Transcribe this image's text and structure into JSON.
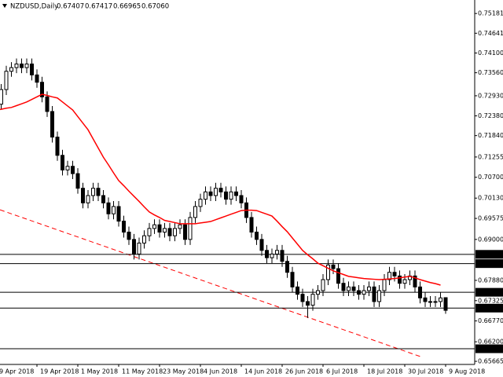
{
  "chart_data": {
    "type": "candlestick",
    "title": "NZDUSD,Daily",
    "last_bar_labels": [
      "0.67407",
      "0.67417",
      "0.66965",
      "0.67060"
    ],
    "categories": [
      "9 Apr 2018",
      null,
      null,
      null,
      null,
      null,
      null,
      null,
      "19 Apr 2018",
      null,
      null,
      null,
      null,
      null,
      null,
      null,
      "1 May 2018",
      null,
      null,
      null,
      null,
      null,
      null,
      null,
      "11 May 2018",
      null,
      null,
      null,
      null,
      null,
      null,
      null,
      "23 May 2018",
      null,
      null,
      null,
      null,
      null,
      null,
      null,
      "4 Jun 2018",
      null,
      null,
      null,
      null,
      null,
      null,
      null,
      "14 Jun 2018",
      null,
      null,
      null,
      null,
      null,
      null,
      null,
      "26 Jun 2018",
      null,
      null,
      null,
      null,
      null,
      null,
      null,
      "6 Jul 2018",
      null,
      null,
      null,
      null,
      null,
      null,
      null,
      "18 Jul 2018",
      null,
      null,
      null,
      null,
      null,
      null,
      null,
      "30 Jul 2018",
      null,
      null,
      null,
      null,
      null,
      null,
      null,
      "9 Aug 2018"
    ],
    "open": [
      0.724,
      0.727,
      0.731,
      0.736,
      0.737,
      0.738,
      0.737,
      0.738,
      0.735,
      0.733,
      0.729,
      0.725,
      0.718,
      0.713,
      0.709,
      0.71,
      0.708,
      0.704,
      0.7,
      0.702,
      0.704,
      0.702,
      0.7,
      0.697,
      0.699,
      0.695,
      0.692,
      0.69,
      0.686,
      0.689,
      0.691,
      0.693,
      0.694,
      0.692,
      0.693,
      0.691,
      0.693,
      0.694,
      0.69,
      0.696,
      0.699,
      0.701,
      0.703,
      0.702,
      0.704,
      0.703,
      0.701,
      0.703,
      0.702,
      0.7,
      0.696,
      0.692,
      0.69,
      0.687,
      0.685,
      0.686,
      0.687,
      0.684,
      0.681,
      0.677,
      0.675,
      0.673,
      0.672,
      0.675,
      0.676,
      0.679,
      0.683,
      0.682,
      0.678,
      0.676,
      0.677,
      0.676,
      0.675,
      0.676,
      0.677,
      0.673,
      0.676,
      0.679,
      0.681,
      0.68,
      0.678,
      0.679,
      0.68,
      0.677,
      0.674,
      0.673,
      0.673,
      0.673,
      0.67407
    ],
    "high": [
      0.7285,
      0.7325,
      0.7375,
      0.7385,
      0.7395,
      0.7395,
      0.7395,
      0.7395,
      0.7365,
      0.7345,
      0.7305,
      0.7265,
      0.7195,
      0.7145,
      0.7115,
      0.7115,
      0.7095,
      0.7055,
      0.7035,
      0.7055,
      0.7055,
      0.7035,
      0.7015,
      0.7005,
      0.7005,
      0.6965,
      0.6935,
      0.6915,
      0.6905,
      0.6925,
      0.6945,
      0.6955,
      0.6955,
      0.6945,
      0.6945,
      0.6945,
      0.6955,
      0.6955,
      0.6975,
      0.7005,
      0.7025,
      0.7045,
      0.7045,
      0.7055,
      0.7055,
      0.7045,
      0.7045,
      0.7045,
      0.7035,
      0.7015,
      0.6975,
      0.6935,
      0.6915,
      0.6885,
      0.6875,
      0.6885,
      0.6885,
      0.6855,
      0.6825,
      0.6785,
      0.6765,
      0.6745,
      0.6765,
      0.6775,
      0.6805,
      0.6845,
      0.6845,
      0.6835,
      0.6795,
      0.6785,
      0.6785,
      0.6775,
      0.6775,
      0.6785,
      0.6785,
      0.6775,
      0.6805,
      0.6825,
      0.6825,
      0.6815,
      0.6805,
      0.6815,
      0.6815,
      0.6785,
      0.6755,
      0.6745,
      0.6745,
      0.6755,
      0.67417
    ],
    "low": [
      0.7225,
      0.7255,
      0.7295,
      0.7345,
      0.7355,
      0.7355,
      0.7355,
      0.7335,
      0.7315,
      0.7275,
      0.7235,
      0.7165,
      0.7115,
      0.7075,
      0.7075,
      0.7065,
      0.7025,
      0.6985,
      0.6985,
      0.7005,
      0.7005,
      0.6985,
      0.6955,
      0.6955,
      0.6935,
      0.6905,
      0.6885,
      0.6845,
      0.6845,
      0.6875,
      0.6895,
      0.6915,
      0.6905,
      0.6905,
      0.6895,
      0.6895,
      0.6915,
      0.6885,
      0.6885,
      0.6945,
      0.6975,
      0.6995,
      0.7005,
      0.7005,
      0.7015,
      0.6995,
      0.6995,
      0.7005,
      0.6985,
      0.6945,
      0.6905,
      0.6885,
      0.6855,
      0.6835,
      0.6835,
      0.6845,
      0.6825,
      0.6795,
      0.6755,
      0.6735,
      0.6715,
      0.6685,
      0.6705,
      0.6735,
      0.6745,
      0.6775,
      0.6805,
      0.6765,
      0.6745,
      0.6745,
      0.6745,
      0.6735,
      0.6735,
      0.6745,
      0.6715,
      0.6715,
      0.6745,
      0.6775,
      0.6785,
      0.6765,
      0.6765,
      0.6775,
      0.6755,
      0.6725,
      0.6715,
      0.6715,
      0.6715,
      0.6715,
      0.66965
    ],
    "close": [
      0.727,
      0.731,
      0.736,
      0.737,
      0.738,
      0.737,
      0.738,
      0.735,
      0.733,
      0.729,
      0.725,
      0.718,
      0.713,
      0.709,
      0.71,
      0.708,
      0.704,
      0.7,
      0.702,
      0.704,
      0.702,
      0.7,
      0.697,
      0.699,
      0.695,
      0.692,
      0.69,
      0.686,
      0.689,
      0.691,
      0.693,
      0.694,
      0.692,
      0.693,
      0.691,
      0.693,
      0.694,
      0.69,
      0.696,
      0.699,
      0.701,
      0.703,
      0.702,
      0.704,
      0.703,
      0.701,
      0.703,
      0.702,
      0.7,
      0.696,
      0.692,
      0.69,
      0.687,
      0.685,
      0.686,
      0.687,
      0.684,
      0.681,
      0.677,
      0.675,
      0.673,
      0.672,
      0.675,
      0.676,
      0.679,
      0.683,
      0.682,
      0.678,
      0.676,
      0.677,
      0.676,
      0.675,
      0.676,
      0.677,
      0.673,
      0.676,
      0.679,
      0.681,
      0.68,
      0.678,
      0.679,
      0.68,
      0.677,
      0.674,
      0.673,
      0.673,
      0.673,
      0.674,
      0.6706
    ],
    "moving_average": {
      "color": "#ff0000",
      "values": [
        0.7254,
        0.7256,
        0.7259,
        0.7261,
        0.7266,
        0.7271,
        0.7276,
        0.7283,
        0.729,
        0.7297,
        0.7294,
        0.729,
        0.7287,
        0.7276,
        0.7265,
        0.7254,
        0.7236,
        0.7218,
        0.72,
        0.7175,
        0.715,
        0.7125,
        0.7104,
        0.7082,
        0.7061,
        0.7047,
        0.7032,
        0.7018,
        0.7004,
        0.6989,
        0.6975,
        0.6967,
        0.696,
        0.6952,
        0.6949,
        0.6946,
        0.6943,
        0.6943,
        0.6943,
        0.6943,
        0.6945,
        0.6947,
        0.6949,
        0.6954,
        0.6959,
        0.6964,
        0.6969,
        0.6974,
        0.6979,
        0.698,
        0.698,
        0.6979,
        0.6974,
        0.6969,
        0.6964,
        0.695,
        0.6935,
        0.6921,
        0.6904,
        0.6887,
        0.687,
        0.6858,
        0.6847,
        0.6835,
        0.6828,
        0.6821,
        0.6814,
        0.6809,
        0.6804,
        0.6799,
        0.6797,
        0.6795,
        0.6793,
        0.6792,
        0.6791,
        0.679,
        0.6791,
        0.6792,
        0.6793,
        0.6795,
        0.6797,
        0.6799,
        0.6795,
        0.679,
        0.6786,
        0.6782,
        0.6779,
        0.6775,
        null
      ]
    },
    "trend_line": {
      "color": "#ff0000",
      "values": [
        0.6981,
        0.6578
      ]
    },
    "levels": [
      0.68592,
      0.68338,
      0.67554,
      0.67121,
      0.66009
    ],
    "level_color": "#000000",
    "bull_color": "#ffffff",
    "bear_color": "#000000",
    "ylim": [
      0.6558,
      0.7555
    ],
    "yticks": [
      0.75181,
      0.74641,
      {
        "value": 0.741,
        "label": "0.74100"
      },
      {
        "value": 0.7356,
        "label": "0.73560"
      },
      {
        "value": 0.7293,
        "label": "0.72930"
      },
      {
        "value": 0.7238,
        "label": "0.72380"
      },
      {
        "value": 0.7184,
        "label": "0.71840"
      },
      0.71255,
      {
        "value": 0.707,
        "label": "0.70700"
      },
      {
        "value": 0.7013,
        "label": "0.70130"
      },
      0.69575,
      {
        "value": 0.69,
        "label": "0.69000"
      },
      {
        "value": 0.6788,
        "label": "0.67880"
      },
      0.67325,
      {
        "value": 0.6677,
        "label": "0.66770"
      },
      {
        "value": 0.662,
        "label": "0.66200"
      },
      0.65665
    ]
  }
}
